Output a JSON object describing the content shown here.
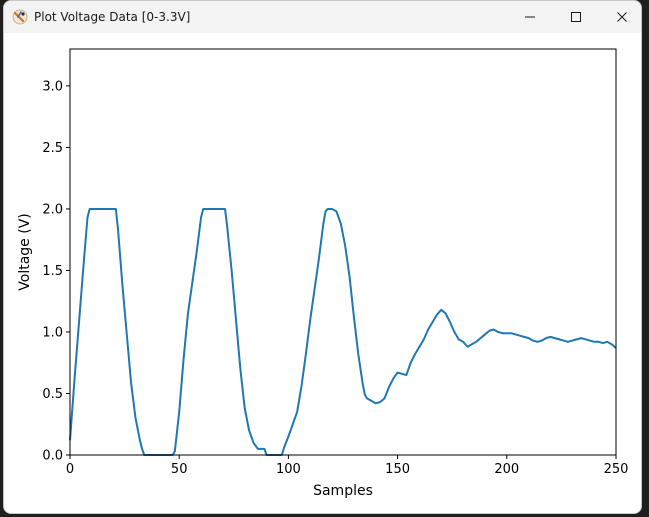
{
  "window": {
    "title": "Plot Voltage Data [0-3.3V]",
    "icons": {
      "app": "matplotlib-icon",
      "minimize": "minimize-icon",
      "maximize": "maximize-icon",
      "close": "close-icon"
    }
  },
  "chart_data": {
    "type": "line",
    "title": "",
    "xlabel": "Samples",
    "ylabel": "Voltage (V)",
    "xlim": [
      0,
      250
    ],
    "ylim": [
      0,
      3.3
    ],
    "xticks": [
      0,
      50,
      100,
      150,
      200,
      250
    ],
    "yticks": [
      0.0,
      0.5,
      1.0,
      1.5,
      2.0,
      2.5,
      3.0
    ],
    "xtick_labels": [
      "0",
      "50",
      "100",
      "150",
      "200",
      "250"
    ],
    "ytick_labels": [
      "0.0",
      "0.5",
      "1.0",
      "1.5",
      "2.0",
      "2.5",
      "3.0"
    ],
    "grid": false,
    "line_color": "#1f77b4",
    "series": [
      {
        "x": [
          0,
          2,
          4,
          6,
          8,
          9,
          10,
          12,
          14,
          16,
          18,
          20,
          21,
          22,
          24,
          26,
          28,
          30,
          32,
          33,
          34,
          35,
          47,
          48,
          50,
          52,
          54,
          56,
          58,
          60,
          61,
          62,
          64,
          66,
          68,
          70,
          71,
          72,
          74,
          76,
          78,
          80,
          82,
          84,
          86,
          87,
          88,
          89,
          90,
          91,
          97,
          98,
          100,
          102,
          104,
          106,
          108,
          110,
          112,
          114,
          116,
          117,
          118,
          120,
          122,
          124,
          126,
          128,
          130,
          132,
          134,
          135,
          136,
          138,
          140,
          142,
          144,
          146,
          148,
          150,
          152,
          154,
          156,
          158,
          160,
          162,
          164,
          166,
          168,
          170,
          172,
          174,
          176,
          178,
          180,
          182,
          184,
          186,
          188,
          190,
          192,
          194,
          196,
          198,
          200,
          202,
          204,
          206,
          208,
          210,
          212,
          214,
          216,
          218,
          220,
          222,
          224,
          226,
          228,
          230,
          232,
          234,
          236,
          238,
          240,
          242,
          244,
          246,
          248,
          250
        ],
        "y": [
          0.12,
          0.6,
          1.05,
          1.5,
          1.93,
          2.0,
          2.0,
          2.0,
          2.0,
          2.0,
          2.0,
          2.0,
          2.0,
          1.83,
          1.38,
          0.98,
          0.58,
          0.3,
          0.12,
          0.05,
          0.0,
          0.0,
          0.0,
          0.03,
          0.35,
          0.78,
          1.15,
          1.4,
          1.65,
          1.93,
          2.0,
          2.0,
          2.0,
          2.0,
          2.0,
          2.0,
          2.0,
          1.85,
          1.5,
          1.1,
          0.7,
          0.38,
          0.2,
          0.1,
          0.05,
          0.05,
          0.05,
          0.05,
          0.0,
          0.0,
          0.0,
          0.06,
          0.15,
          0.25,
          0.35,
          0.56,
          0.82,
          1.1,
          1.35,
          1.6,
          1.88,
          1.98,
          2.0,
          2.0,
          1.98,
          1.88,
          1.7,
          1.45,
          1.12,
          0.82,
          0.58,
          0.49,
          0.46,
          0.44,
          0.42,
          0.43,
          0.46,
          0.55,
          0.62,
          0.67,
          0.66,
          0.65,
          0.75,
          0.82,
          0.88,
          0.94,
          1.02,
          1.08,
          1.14,
          1.18,
          1.15,
          1.08,
          1.0,
          0.94,
          0.92,
          0.88,
          0.9,
          0.92,
          0.95,
          0.98,
          1.01,
          1.02,
          1.0,
          0.99,
          0.99,
          0.99,
          0.98,
          0.97,
          0.96,
          0.95,
          0.93,
          0.92,
          0.93,
          0.95,
          0.96,
          0.95,
          0.94,
          0.93,
          0.92,
          0.93,
          0.94,
          0.95,
          0.94,
          0.93,
          0.92,
          0.92,
          0.91,
          0.92,
          0.9,
          0.87
        ]
      }
    ]
  }
}
